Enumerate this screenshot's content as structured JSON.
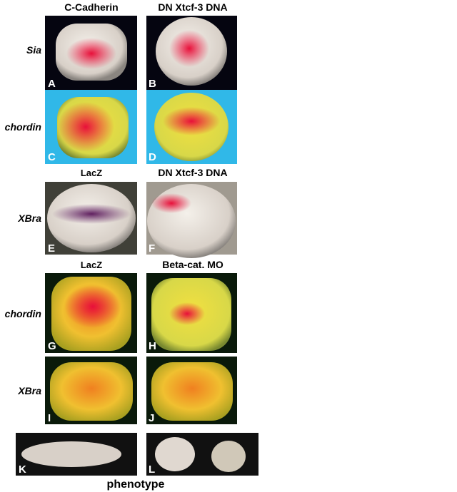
{
  "headers": [
    [
      "C-Cadherin",
      "DN Xtcf-3 DNA"
    ],
    [
      "LacZ",
      "DN Xtcf-3 DNA"
    ],
    [
      "LacZ",
      "Beta-cat. MO"
    ]
  ],
  "rows": [
    {
      "label": "Sia",
      "panels": [
        "A",
        "B"
      ]
    },
    {
      "label": "chordin",
      "panels": [
        "C",
        "D"
      ]
    },
    {
      "label": "XBra",
      "panels": [
        "E",
        "F"
      ]
    },
    {
      "label": "chordin",
      "panels": [
        "G",
        "H"
      ]
    },
    {
      "label": "XBra",
      "panels": [
        "I",
        "J"
      ]
    }
  ],
  "phenotype": {
    "panels": [
      "K",
      "L"
    ],
    "caption": "phenotype"
  }
}
